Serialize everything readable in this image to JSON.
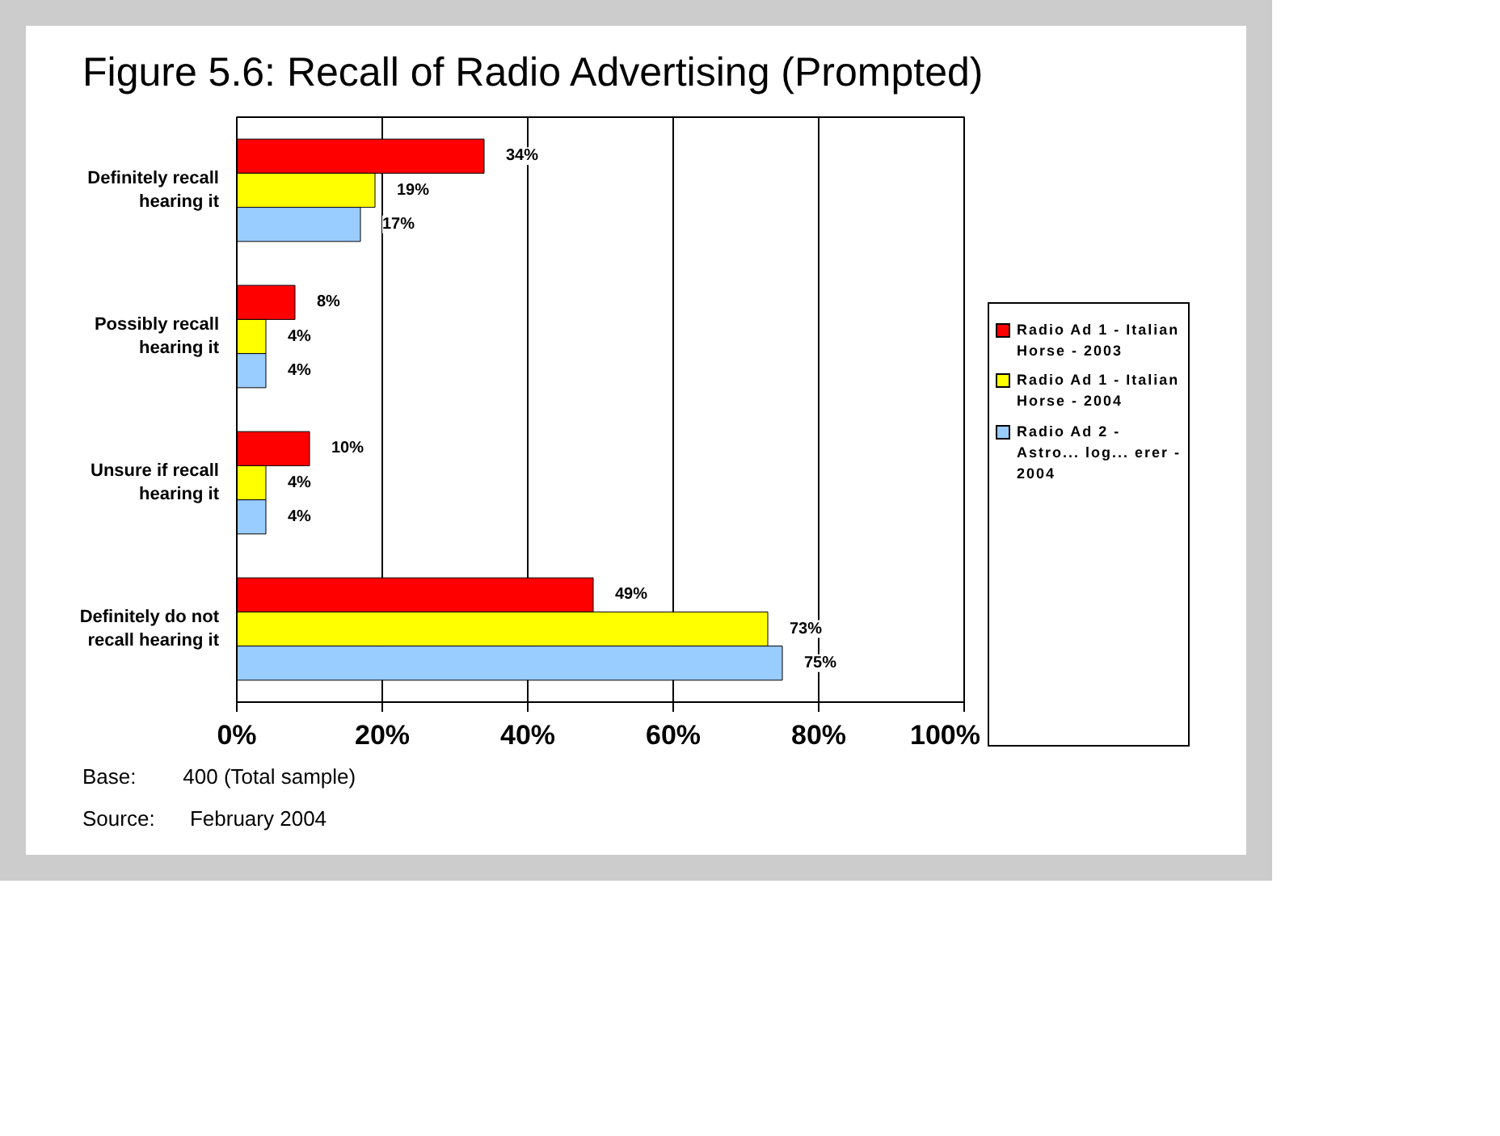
{
  "chart_data": {
    "type": "bar",
    "orientation": "horizontal",
    "title": "Figure 5.6:  Recall of Radio Advertising (Prompted)",
    "categories": [
      "Definitely recall hearing it",
      "Possibly recall hearing it",
      "Unsure if recall hearing it",
      "Definitely do not recall hearing it"
    ],
    "series": [
      {
        "name": "Radio Ad 1 - Italian Horse - 2003",
        "color": "#ff0000",
        "values": [
          34,
          8,
          10,
          49
        ],
        "value_labels": [
          "34%",
          "8%",
          "10%",
          "49%"
        ]
      },
      {
        "name": "Radio Ad 1 - Italian Horse - 2004",
        "color": "#ffff00",
        "values": [
          19,
          4,
          4,
          73
        ],
        "value_labels": [
          "19%",
          "4%",
          "4%",
          "73%"
        ]
      },
      {
        "name": "Radio Ad 2 - Astro... log... erer - 2004",
        "color": "#99ccff",
        "values": [
          17,
          4,
          4,
          75
        ],
        "value_labels": [
          "17%",
          "4%",
          "4%",
          "75%"
        ]
      }
    ],
    "xlim": [
      0,
      100
    ],
    "xticks": [
      {
        "value": 0,
        "label": "0%"
      },
      {
        "value": 20,
        "label": "20%"
      },
      {
        "value": 40,
        "label": "40%"
      },
      {
        "value": 60,
        "label": "60%"
      },
      {
        "value": 80,
        "label": "80%"
      },
      {
        "value": 100,
        "label": "100%"
      }
    ],
    "grid": "x",
    "legend": "right",
    "annotations": [
      "Base:        400 (Total sample)",
      "Source:      February 2004"
    ]
  }
}
